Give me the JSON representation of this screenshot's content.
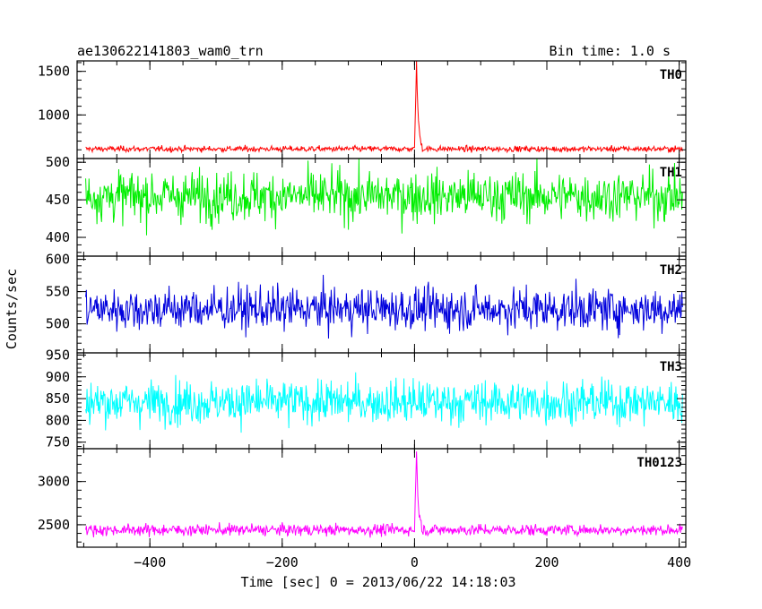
{
  "chart_data": {
    "type": "line",
    "title": "ae130622141803_wam0_trn",
    "subtitle": "Bin time: 1.0 s",
    "xlabel": "Time [sec] 0 = 2013/06/22 14:18:03",
    "ylabel": "Counts/sec",
    "xlim": [
      -510,
      410
    ],
    "x_ticks": [
      -400,
      -200,
      0,
      200,
      400
    ],
    "grid": false,
    "panels": [
      {
        "name": "TH0",
        "color": "#ff0000",
        "ylim": [
          500,
          1620
        ],
        "y_ticks": [
          1000,
          1500
        ],
        "y_tick_labels": [
          "1000",
          "1500"
        ],
        "baseline": 610,
        "noise": 30,
        "peak": {
          "x": 3,
          "value": 1610,
          "width": 8
        }
      },
      {
        "name": "TH1",
        "color": "#00ee00",
        "ylim": [
          375,
          505
        ],
        "y_ticks": [
          400,
          450,
          500
        ],
        "y_tick_labels": [
          "400",
          "450",
          "500"
        ],
        "baseline": 455,
        "noise": 30,
        "peak": null
      },
      {
        "name": "TH2",
        "color": "#0000dd",
        "ylim": [
          455,
          605
        ],
        "y_ticks": [
          500,
          550,
          600
        ],
        "y_tick_labels": [
          "500",
          "550",
          "600"
        ],
        "baseline": 523,
        "noise": 30,
        "peak": null
      },
      {
        "name": "TH3",
        "color": "#00ffff",
        "ylim": [
          735,
          955
        ],
        "y_ticks": [
          750,
          800,
          850,
          900,
          950
        ],
        "y_tick_labels": [
          "750",
          "800",
          "850",
          "900",
          "950"
        ],
        "baseline": 842,
        "noise": 45,
        "peak": null
      },
      {
        "name": "TH0123",
        "color": "#ff00ff",
        "ylim": [
          2240,
          3380
        ],
        "y_ticks": [
          2500,
          3000
        ],
        "y_tick_labels": [
          "2500",
          "3000"
        ],
        "baseline": 2440,
        "noise": 60,
        "peak": {
          "x": 3,
          "value": 3350,
          "width": 8
        }
      }
    ]
  }
}
